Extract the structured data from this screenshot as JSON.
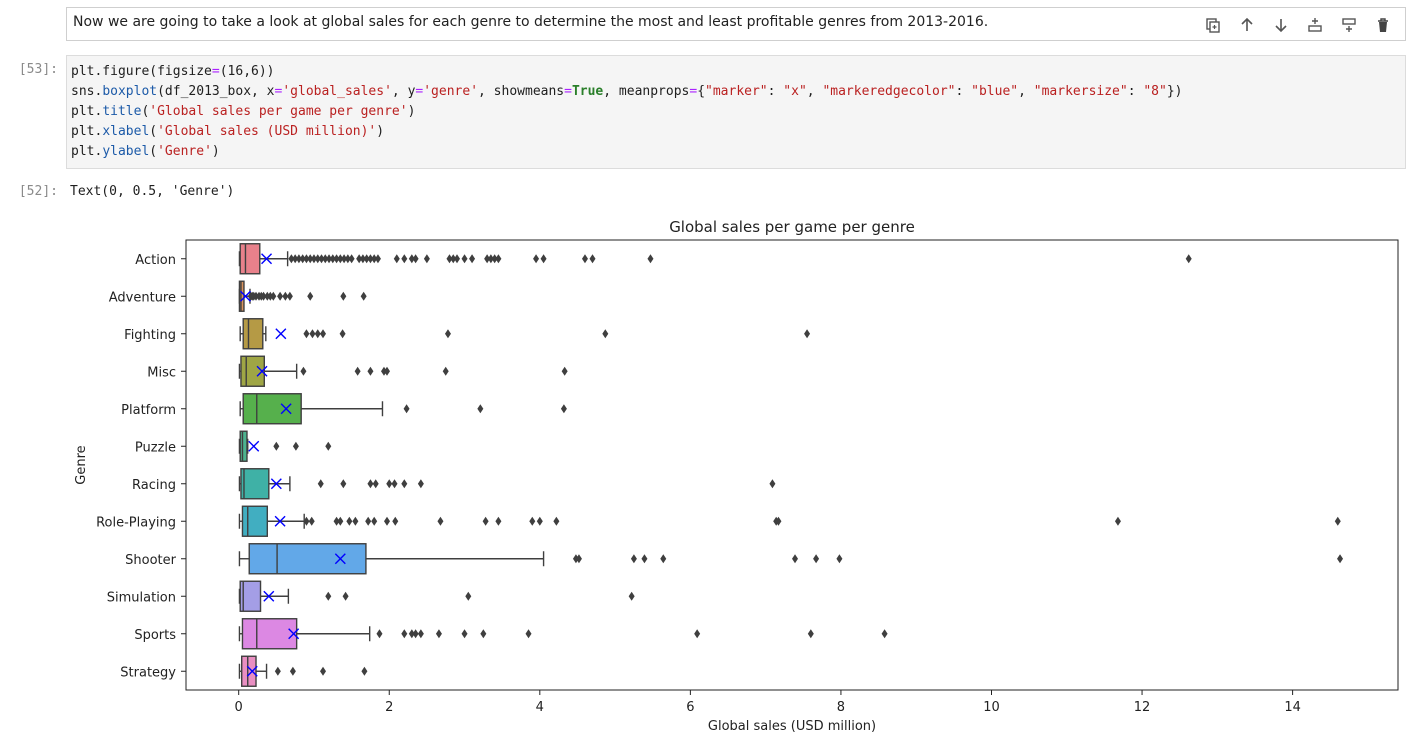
{
  "markdown_cell": {
    "text": "Now we are going to take a look at global sales for each genre to determine the most and least profitable genres from 2013-2016."
  },
  "toolbar": {
    "icons": [
      "duplicate-icon",
      "move-up-icon",
      "move-down-icon",
      "insert-above-icon",
      "insert-below-icon",
      "delete-icon"
    ]
  },
  "input_prompt": "[53]:",
  "code_lines": [
    [
      {
        "t": "plt.figure(figsize",
        "c": ""
      },
      {
        "t": "=",
        "c": "op"
      },
      {
        "t": "(16,6))",
        "c": ""
      }
    ],
    [
      {
        "t": "sns.",
        "c": ""
      },
      {
        "t": "boxplot",
        "c": "fn"
      },
      {
        "t": "(df_2013_box, x",
        "c": ""
      },
      {
        "t": "=",
        "c": "op"
      },
      {
        "t": "'global_sales'",
        "c": "str"
      },
      {
        "t": ", y",
        "c": ""
      },
      {
        "t": "=",
        "c": "op"
      },
      {
        "t": "'genre'",
        "c": "str"
      },
      {
        "t": ", showmeans",
        "c": ""
      },
      {
        "t": "=",
        "c": "op"
      },
      {
        "t": "True",
        "c": "kw"
      },
      {
        "t": ", meanprops",
        "c": ""
      },
      {
        "t": "=",
        "c": "op"
      },
      {
        "t": "{",
        "c": ""
      },
      {
        "t": "\"marker\"",
        "c": "str"
      },
      {
        "t": ": ",
        "c": ""
      },
      {
        "t": "\"x\"",
        "c": "str"
      },
      {
        "t": ", ",
        "c": ""
      },
      {
        "t": "\"markeredgecolor\"",
        "c": "str"
      },
      {
        "t": ": ",
        "c": ""
      },
      {
        "t": "\"blue\"",
        "c": "str"
      },
      {
        "t": ", ",
        "c": ""
      },
      {
        "t": "\"markersize\"",
        "c": "str"
      },
      {
        "t": ": ",
        "c": ""
      },
      {
        "t": "\"8\"",
        "c": "str"
      },
      {
        "t": "})",
        "c": ""
      }
    ],
    [
      {
        "t": "plt.",
        "c": ""
      },
      {
        "t": "title",
        "c": "fn"
      },
      {
        "t": "(",
        "c": ""
      },
      {
        "t": "'Global sales per game per genre'",
        "c": "str"
      },
      {
        "t": ")",
        "c": ""
      }
    ],
    [
      {
        "t": "plt.",
        "c": ""
      },
      {
        "t": "xlabel",
        "c": "fn"
      },
      {
        "t": "(",
        "c": ""
      },
      {
        "t": "'Global sales (USD million)'",
        "c": "str"
      },
      {
        "t": ")",
        "c": ""
      }
    ],
    [
      {
        "t": "plt.",
        "c": ""
      },
      {
        "t": "ylabel",
        "c": "fn"
      },
      {
        "t": "(",
        "c": ""
      },
      {
        "t": "'Genre'",
        "c": "str"
      },
      {
        "t": ")",
        "c": ""
      }
    ]
  ],
  "output_prompt": "[52]:",
  "output_text": "Text(0, 0.5, 'Genre')",
  "colors": {
    "mean_marker": "#0000ff",
    "outlier": "#3f3f3f"
  },
  "chart_data": {
    "type": "box",
    "orientation": "horizontal",
    "title": "Global sales per game per genre",
    "xlabel": "Global sales (USD million)",
    "ylabel": "Genre",
    "xlim": [
      -0.7,
      15.4
    ],
    "xticks": [
      0,
      2,
      4,
      6,
      8,
      10,
      12,
      14
    ],
    "grid": false,
    "series": [
      {
        "name": "Action",
        "color": "#e8818b",
        "whislo": 0.01,
        "q1": 0.02,
        "median": 0.09,
        "q3": 0.28,
        "whishi": 0.65,
        "mean": 0.37,
        "outliers": [
          0.7,
          0.75,
          0.8,
          0.85,
          0.9,
          0.95,
          1.0,
          1.05,
          1.1,
          1.15,
          1.2,
          1.25,
          1.3,
          1.35,
          1.4,
          1.45,
          1.5,
          1.6,
          1.65,
          1.7,
          1.75,
          1.8,
          1.85,
          2.1,
          2.2,
          2.3,
          2.35,
          2.5,
          2.8,
          2.85,
          2.9,
          3.0,
          3.1,
          3.3,
          3.35,
          3.4,
          3.45,
          3.95,
          4.05,
          4.6,
          4.7,
          5.47,
          12.62
        ]
      },
      {
        "name": "Adventure",
        "color": "#d9945e",
        "whislo": 0.01,
        "q1": 0.01,
        "median": 0.03,
        "q3": 0.07,
        "whishi": 0.15,
        "mean": 0.09,
        "outliers": [
          0.16,
          0.18,
          0.2,
          0.23,
          0.27,
          0.3,
          0.33,
          0.38,
          0.42,
          0.46,
          0.55,
          0.62,
          0.68,
          0.95,
          1.39,
          1.66
        ]
      },
      {
        "name": "Fighting",
        "color": "#b59a45",
        "whislo": 0.02,
        "q1": 0.06,
        "median": 0.13,
        "q3": 0.32,
        "whishi": 0.36,
        "mean": 0.56,
        "outliers": [
          0.9,
          0.98,
          1.05,
          1.12,
          1.38,
          2.78,
          4.87,
          7.55
        ]
      },
      {
        "name": "Misc",
        "color": "#9fa645",
        "whislo": 0.01,
        "q1": 0.03,
        "median": 0.1,
        "q3": 0.34,
        "whishi": 0.77,
        "mean": 0.31,
        "outliers": [
          0.86,
          1.58,
          1.75,
          1.93,
          1.97,
          2.75,
          4.33
        ]
      },
      {
        "name": "Platform",
        "color": "#56b04c",
        "whislo": 0.02,
        "q1": 0.06,
        "median": 0.24,
        "q3": 0.83,
        "whishi": 1.91,
        "mean": 0.63,
        "outliers": [
          2.23,
          3.21,
          4.32
        ]
      },
      {
        "name": "Puzzle",
        "color": "#4db38f",
        "whislo": 0.01,
        "q1": 0.02,
        "median": 0.05,
        "q3": 0.11,
        "whishi": 0.12,
        "mean": 0.2,
        "outliers": [
          0.5,
          0.76,
          1.19
        ]
      },
      {
        "name": "Racing",
        "color": "#3fb1a6",
        "whislo": 0.01,
        "q1": 0.03,
        "median": 0.07,
        "q3": 0.4,
        "whishi": 0.68,
        "mean": 0.5,
        "outliers": [
          1.09,
          1.39,
          1.75,
          1.82,
          2.0,
          2.07,
          2.2,
          2.42,
          7.09
        ]
      },
      {
        "name": "Role-Playing",
        "color": "#41aec1",
        "whislo": 0.01,
        "q1": 0.05,
        "median": 0.12,
        "q3": 0.38,
        "whishi": 0.87,
        "mean": 0.55,
        "outliers": [
          0.9,
          0.97,
          1.3,
          1.35,
          1.47,
          1.55,
          1.72,
          1.8,
          1.97,
          2.08,
          2.68,
          3.28,
          3.45,
          3.9,
          4.0,
          4.22,
          7.14,
          7.17,
          11.68,
          14.6
        ]
      },
      {
        "name": "Shooter",
        "color": "#62a8e8",
        "whislo": 0.01,
        "q1": 0.14,
        "median": 0.51,
        "q3": 1.69,
        "whishi": 4.05,
        "mean": 1.35,
        "outliers": [
          4.48,
          4.52,
          5.25,
          5.39,
          5.64,
          7.39,
          7.67,
          7.98,
          14.63
        ]
      },
      {
        "name": "Simulation",
        "color": "#a49ee6",
        "whislo": 0.01,
        "q1": 0.02,
        "median": 0.06,
        "q3": 0.29,
        "whishi": 0.66,
        "mean": 0.4,
        "outliers": [
          1.19,
          1.42,
          3.05,
          5.22
        ]
      },
      {
        "name": "Sports",
        "color": "#dc88e3",
        "whislo": 0.01,
        "q1": 0.05,
        "median": 0.24,
        "q3": 0.77,
        "whishi": 1.74,
        "mean": 0.73,
        "outliers": [
          1.87,
          2.2,
          2.3,
          2.35,
          2.42,
          2.66,
          3.0,
          3.25,
          3.85,
          6.09,
          7.6,
          8.58
        ]
      },
      {
        "name": "Strategy",
        "color": "#e98fc2",
        "whislo": 0.01,
        "q1": 0.04,
        "median": 0.12,
        "q3": 0.23,
        "whishi": 0.37,
        "mean": 0.18,
        "outliers": [
          0.52,
          0.72,
          1.12,
          1.67
        ]
      }
    ]
  }
}
